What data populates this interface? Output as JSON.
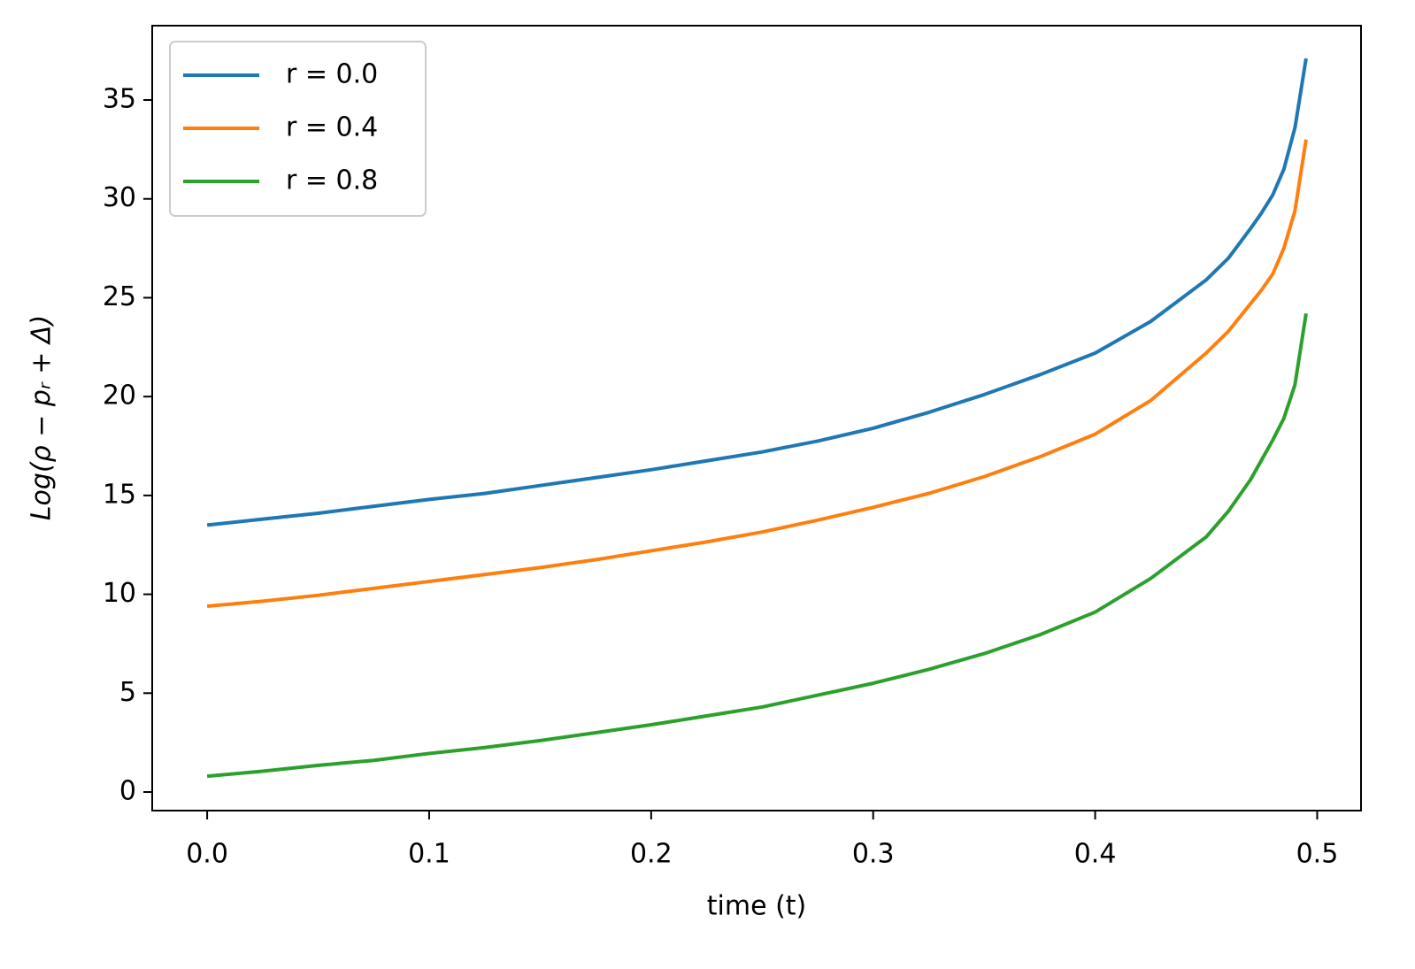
{
  "chart_data": {
    "type": "line",
    "x_label": "time (t)",
    "y_label": "Log(ρ − pᵣ + Δ)",
    "x": [
      0,
      0.025,
      0.05,
      0.075,
      0.1,
      0.125,
      0.15,
      0.175,
      0.2,
      0.225,
      0.25,
      0.275,
      0.3,
      0.325,
      0.35,
      0.375,
      0.4,
      0.425,
      0.45,
      0.46,
      0.47,
      0.475,
      0.48,
      0.485,
      0.49,
      0.495
    ],
    "series": [
      {
        "name": "r = 0.0",
        "color": "#1f77b4",
        "values": [
          13.5,
          13.8,
          14.1,
          14.45,
          14.8,
          15.1,
          15.5,
          15.9,
          16.3,
          16.75,
          17.2,
          17.75,
          18.4,
          19.2,
          20.1,
          21.1,
          22.2,
          23.8,
          25.9,
          27.0,
          28.5,
          29.3,
          30.2,
          31.5,
          33.6,
          37.1
        ]
      },
      {
        "name": "r = 0.4",
        "color": "#ff7f0e",
        "values": [
          9.4,
          9.65,
          9.95,
          10.3,
          10.65,
          11.0,
          11.35,
          11.75,
          12.2,
          12.65,
          13.15,
          13.75,
          14.4,
          15.1,
          15.95,
          16.95,
          18.1,
          19.8,
          22.2,
          23.3,
          24.7,
          25.4,
          26.2,
          27.5,
          29.4,
          33.0
        ]
      },
      {
        "name": "r = 0.8",
        "color": "#2ca02c",
        "values": [
          0.8,
          1.05,
          1.35,
          1.6,
          1.95,
          2.25,
          2.6,
          3.0,
          3.4,
          3.85,
          4.3,
          4.9,
          5.5,
          6.2,
          7.0,
          7.95,
          9.1,
          10.8,
          12.9,
          14.2,
          15.8,
          16.8,
          17.8,
          18.9,
          20.6,
          24.2
        ]
      }
    ],
    "xlim": [
      -0.02475,
      0.51975
    ],
    "ylim": [
      -0.94,
      38.76
    ],
    "xticks": [
      {
        "value": 0,
        "label": "0.0"
      },
      0.1,
      0.2,
      0.3,
      0.4,
      0.5
    ],
    "yticks": [
      0,
      5,
      10,
      15,
      20,
      25,
      30,
      35
    ],
    "legend": "upper-left",
    "grid": false
  }
}
